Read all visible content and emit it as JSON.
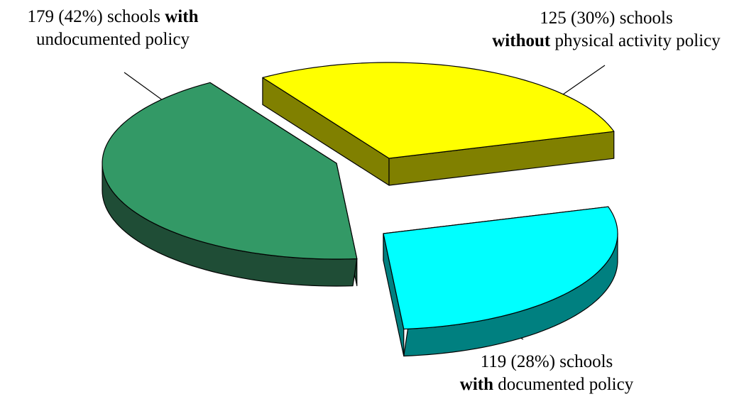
{
  "chart_data": {
    "type": "pie",
    "style": "3d-exploded",
    "slices": [
      {
        "value": 179,
        "percent": 42,
        "color_top": "#339966",
        "color_side": "#1f4d36",
        "label_parts": [
          {
            "text": "179 (42%) schools ",
            "bold": false
          },
          {
            "text": "with",
            "bold": true
          },
          {
            "br": true
          },
          {
            "text": "undocumented policy",
            "bold": false
          }
        ]
      },
      {
        "value": 125,
        "percent": 30,
        "color_top": "#ffff00",
        "color_side": "#808000",
        "label_parts": [
          {
            "text": "125 (30%) schools",
            "bold": false
          },
          {
            "br": true
          },
          {
            "text": "without",
            "bold": true
          },
          {
            "text": " physical activity policy",
            "bold": false
          }
        ]
      },
      {
        "value": 119,
        "percent": 28,
        "color_top": "#00ffff",
        "color_side": "#008080",
        "label_parts": [
          {
            "text": "119 (28%) schools",
            "bold": false
          },
          {
            "br": true
          },
          {
            "text": "with",
            "bold": true
          },
          {
            "text": " documented policy",
            "bold": false
          }
        ]
      }
    ],
    "legend": "none",
    "border_color": "#000000"
  }
}
